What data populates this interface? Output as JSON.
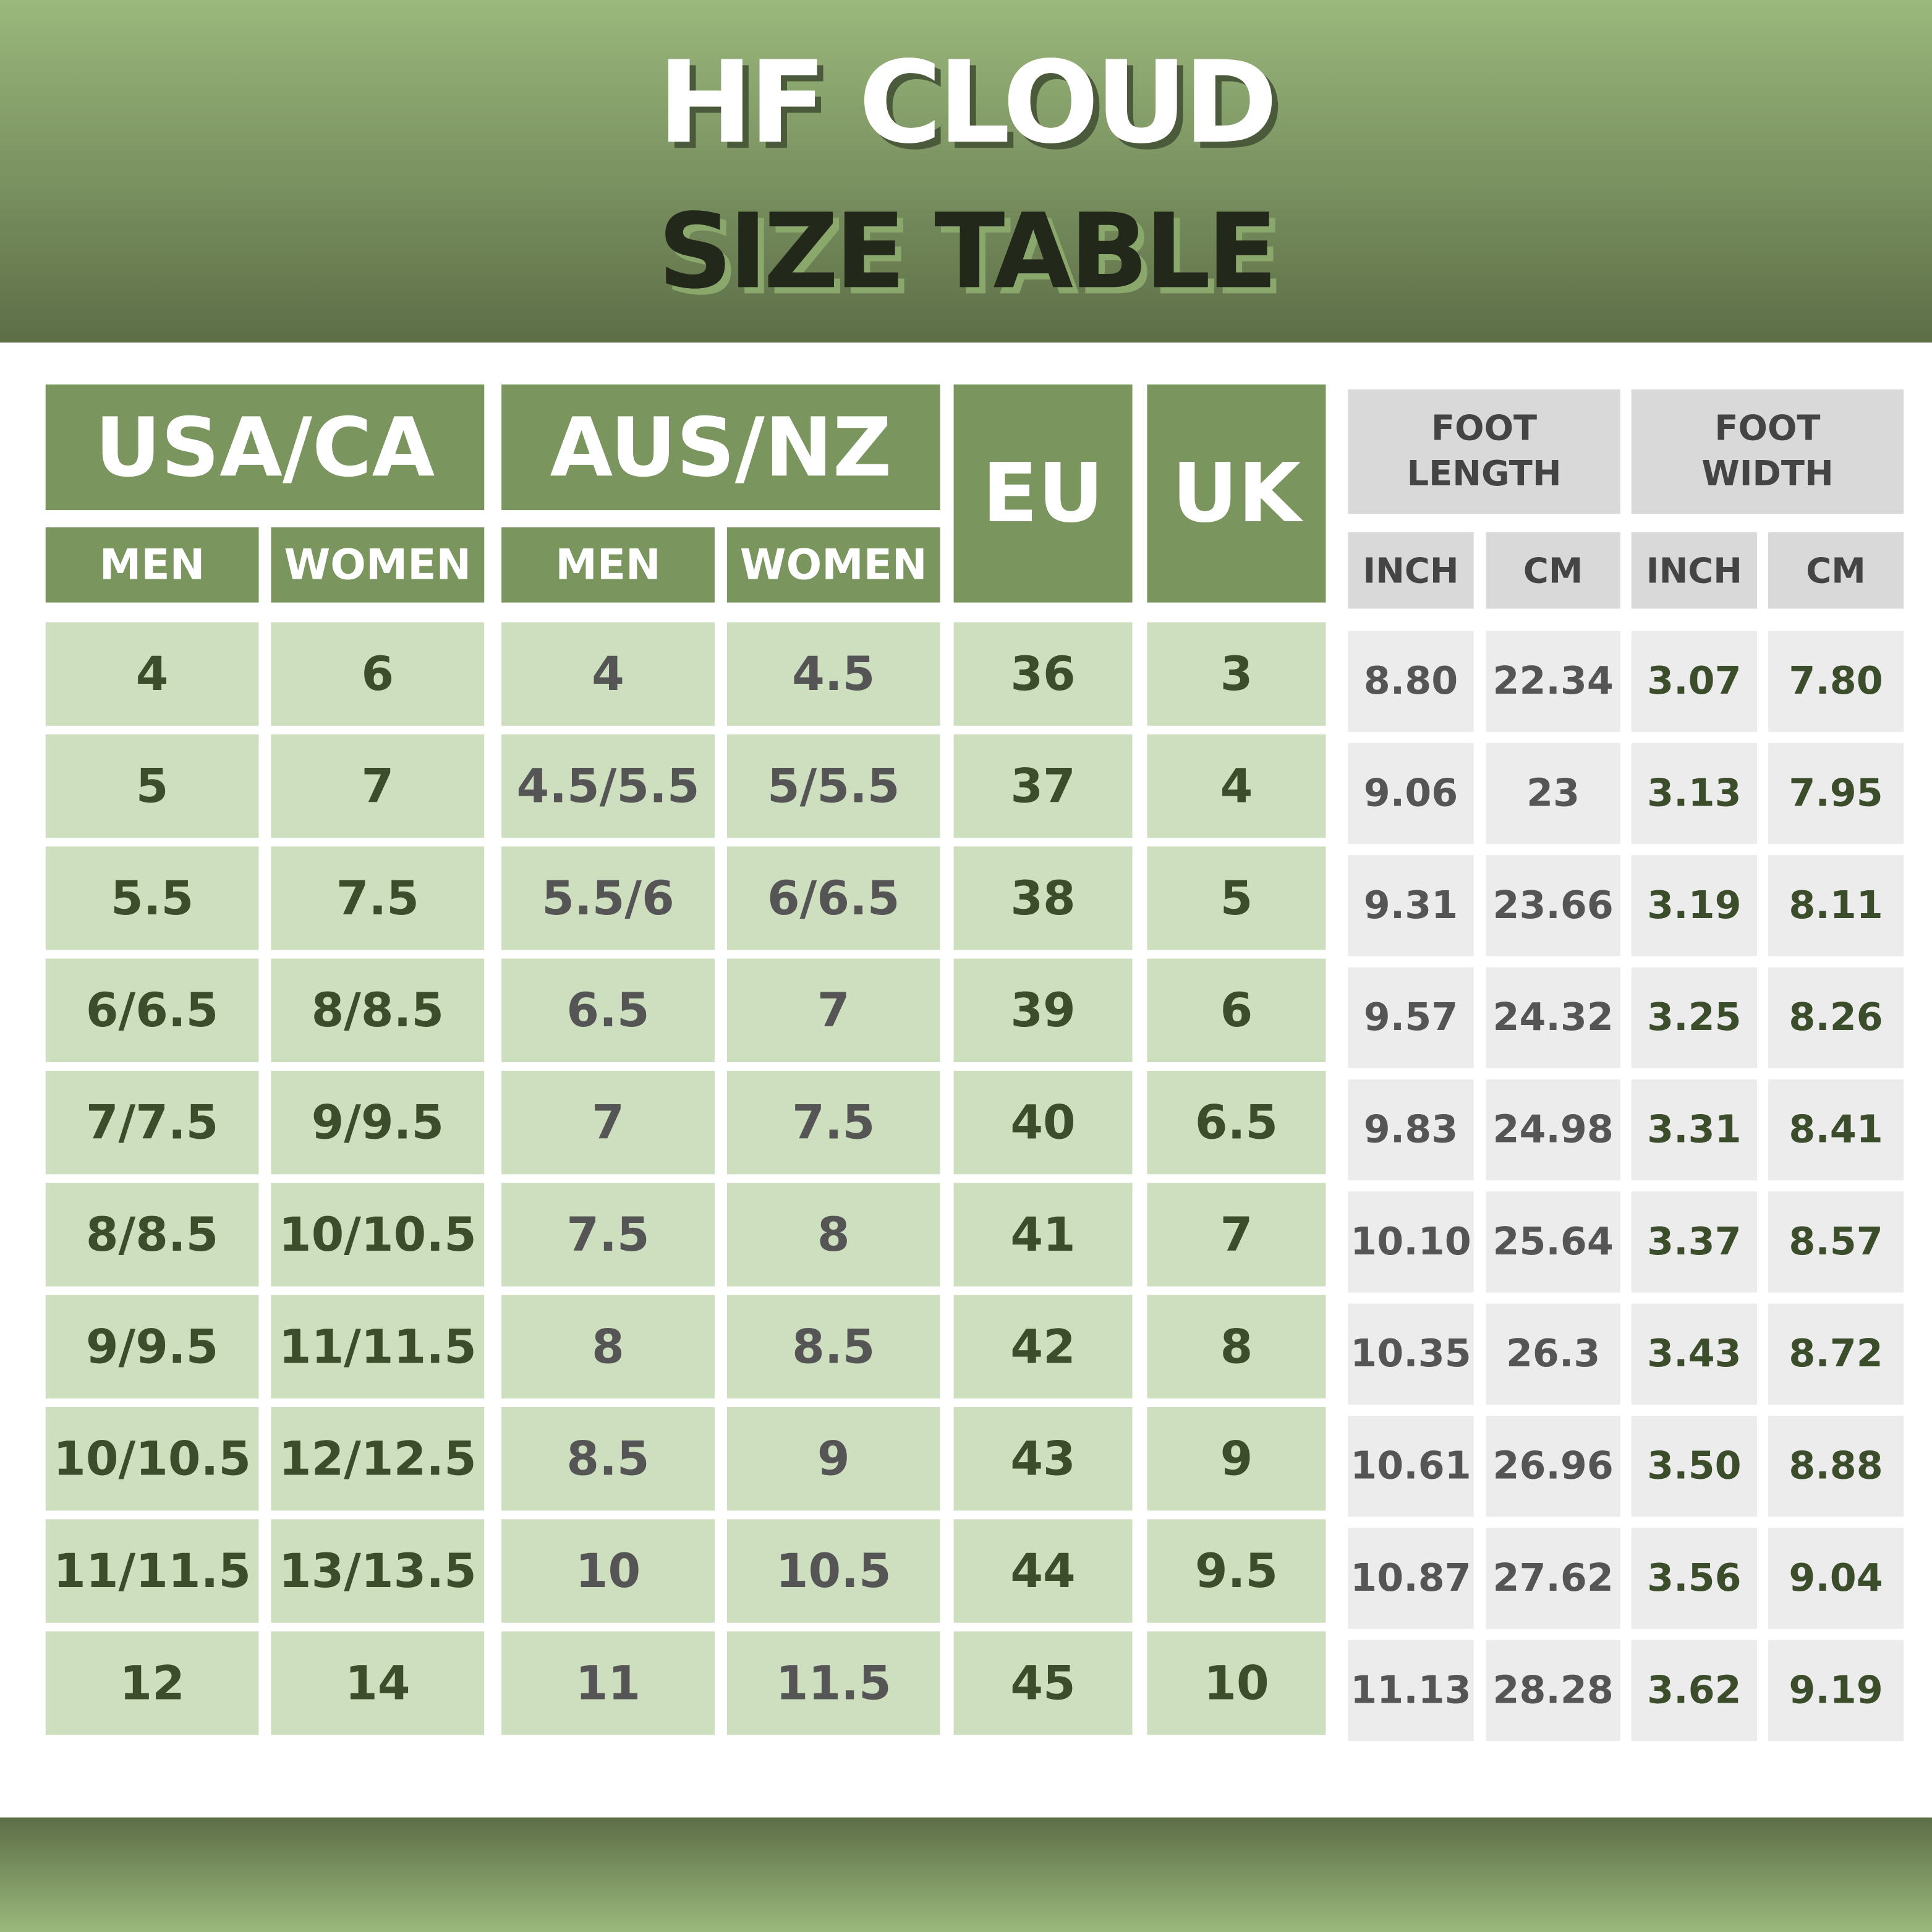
{
  "title": "HF CLOUD",
  "subtitle": "SIZE TABLE",
  "colors": {
    "header_green": "#7a955e",
    "cell_green": "#cddfbf",
    "cell_grey": "#ececec",
    "header_grey": "#d9d9d9",
    "dark_green_text": "#3b4d2a",
    "grey_text": "#555555"
  },
  "headers": {
    "usa_ca": "USA/CA",
    "aus_nz": "AUS/NZ",
    "eu": "EU",
    "uk": "UK",
    "men": "MEN",
    "women": "WOMEN",
    "foot_length": "FOOT LENGTH",
    "foot_width": "FOOT WIDTH",
    "inch": "INCH",
    "cm": "CM"
  },
  "rows": [
    {
      "usa_men": "4",
      "usa_women": "6",
      "aus_men": "4",
      "aus_women": "4.5",
      "eu": "36",
      "uk": "3",
      "fl_inch": "8.80",
      "fl_cm": "22.34",
      "fw_inch": "3.07",
      "fw_cm": "7.80"
    },
    {
      "usa_men": "5",
      "usa_women": "7",
      "aus_men": "4.5/5.5",
      "aus_women": "5/5.5",
      "eu": "37",
      "uk": "4",
      "fl_inch": "9.06",
      "fl_cm": "23",
      "fw_inch": "3.13",
      "fw_cm": "7.95"
    },
    {
      "usa_men": "5.5",
      "usa_women": "7.5",
      "aus_men": "5.5/6",
      "aus_women": "6/6.5",
      "eu": "38",
      "uk": "5",
      "fl_inch": "9.31",
      "fl_cm": "23.66",
      "fw_inch": "3.19",
      "fw_cm": "8.11"
    },
    {
      "usa_men": "6/6.5",
      "usa_women": "8/8.5",
      "aus_men": "6.5",
      "aus_women": "7",
      "eu": "39",
      "uk": "6",
      "fl_inch": "9.57",
      "fl_cm": "24.32",
      "fw_inch": "3.25",
      "fw_cm": "8.26"
    },
    {
      "usa_men": "7/7.5",
      "usa_women": "9/9.5",
      "aus_men": "7",
      "aus_women": "7.5",
      "eu": "40",
      "uk": "6.5",
      "fl_inch": "9.83",
      "fl_cm": "24.98",
      "fw_inch": "3.31",
      "fw_cm": "8.41"
    },
    {
      "usa_men": "8/8.5",
      "usa_women": "10/10.5",
      "aus_men": "7.5",
      "aus_women": "8",
      "eu": "41",
      "uk": "7",
      "fl_inch": "10.10",
      "fl_cm": "25.64",
      "fw_inch": "3.37",
      "fw_cm": "8.57"
    },
    {
      "usa_men": "9/9.5",
      "usa_women": "11/11.5",
      "aus_men": "8",
      "aus_women": "8.5",
      "eu": "42",
      "uk": "8",
      "fl_inch": "10.35",
      "fl_cm": "26.3",
      "fw_inch": "3.43",
      "fw_cm": "8.72"
    },
    {
      "usa_men": "10/10.5",
      "usa_women": "12/12.5",
      "aus_men": "8.5",
      "aus_women": "9",
      "eu": "43",
      "uk": "9",
      "fl_inch": "10.61",
      "fl_cm": "26.96",
      "fw_inch": "3.50",
      "fw_cm": "8.88"
    },
    {
      "usa_men": "11/11.5",
      "usa_women": "13/13.5",
      "aus_men": "10",
      "aus_women": "10.5",
      "eu": "44",
      "uk": "9.5",
      "fl_inch": "10.87",
      "fl_cm": "27.62",
      "fw_inch": "3.56",
      "fw_cm": "9.04"
    },
    {
      "usa_men": "12",
      "usa_women": "14",
      "aus_men": "11",
      "aus_women": "11.5",
      "eu": "45",
      "uk": "10",
      "fl_inch": "11.13",
      "fl_cm": "28.28",
      "fw_inch": "3.62",
      "fw_cm": "9.19"
    }
  ]
}
